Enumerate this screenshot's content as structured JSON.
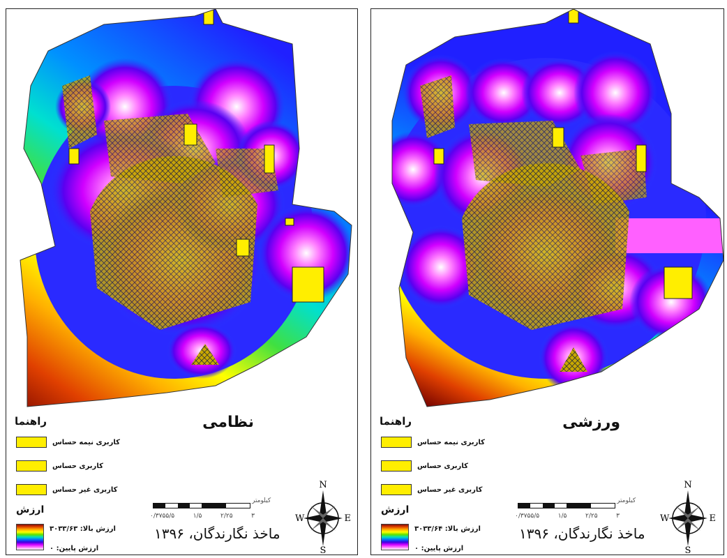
{
  "figure": {
    "panels": [
      {
        "id": "left",
        "title": "نظامی",
        "legend": {
          "heading": "راهنما",
          "items": [
            {
              "label": "کاربری نیمه حساس",
              "color": "#ffee00"
            },
            {
              "label": "کاربری حساس",
              "color": "#ffee00"
            },
            {
              "label": "کاربری غیر حساس",
              "color": "#ffee00"
            }
          ]
        },
        "value_legend": {
          "heading": "ارزش",
          "high": "ارزش بالا: ۳۰۳۳/۶۳",
          "low": "ارزش پایین: ۰"
        },
        "scale": {
          "unit": "کیلومتر",
          "ticks": [
            "۰/۳۷۵۵/۵",
            "۱/۵",
            "۲/۲۵",
            "۳"
          ]
        },
        "source": "ماخذ نگارندگان، ۱۳۹۶",
        "compass": {
          "n": "N",
          "s": "S",
          "e": "E",
          "w": "W"
        }
      },
      {
        "id": "right",
        "title": "ورزشی",
        "legend": {
          "heading": "راهنما",
          "items": [
            {
              "label": "کاربری نیمه حساس",
              "color": "#ffee00"
            },
            {
              "label": "کاربری حساس",
              "color": "#ffee00"
            },
            {
              "label": "کاربری غیر حساس",
              "color": "#ffee00"
            }
          ]
        },
        "value_legend": {
          "heading": "ارزش",
          "high": "ارزش بالا: ۳۰۳۳/۶۴",
          "low": "ارزش پایین: ۰"
        },
        "scale": {
          "unit": "کیلومتر",
          "ticks": [
            "۰/۳۷۵۵/۵",
            "۱/۵",
            "۲/۲۵",
            "۳"
          ]
        },
        "source": "ماخذ نگارندگان، ۱۳۹۶",
        "compass": {
          "n": "N",
          "s": "S",
          "e": "E",
          "w": "W"
        }
      }
    ],
    "color_ramp": [
      "#8b0a00",
      "#e34a00",
      "#ffb000",
      "#ffff00",
      "#60e000",
      "#00e0c0",
      "#0070ff",
      "#3a00e0",
      "#d000ff",
      "#ff70ff",
      "#ffffff"
    ],
    "parcel_color": "#d4b800"
  }
}
